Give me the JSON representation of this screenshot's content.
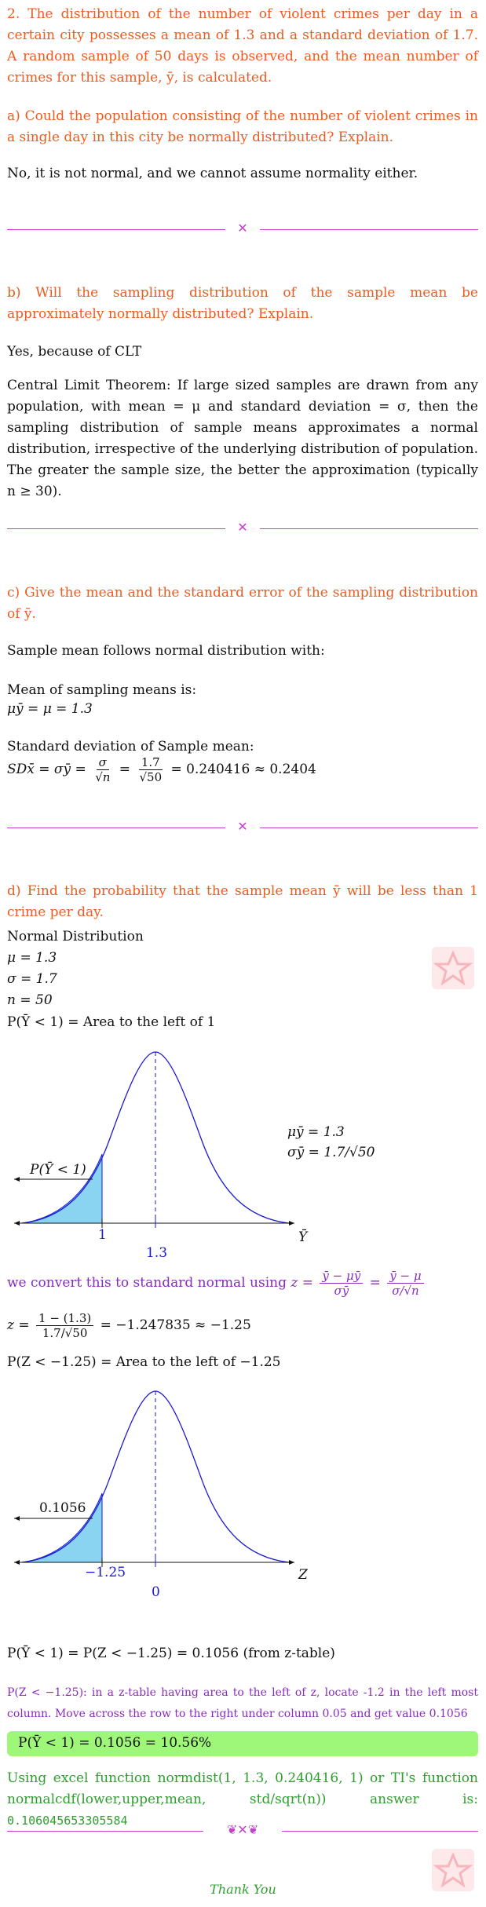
{
  "question": {
    "number": "2.",
    "text": "The distribution of the number of violent crimes per day in a certain city possesses a mean of 1.3 and a standard deviation of 1.7. A random sample of 50 days is observed, and the mean number of crimes for this sample, ȳ, is calculated."
  },
  "part_a": {
    "question": "a) Could the population consisting of the number of violent crimes in a single day in this city be normally distributed? Explain.",
    "answer": "No, it is not normal, and we cannot assume normality either."
  },
  "part_b": {
    "question": "b) Will the sampling distribution of the sample mean be approximately normally distributed? Explain.",
    "answer": "Yes, because of CLT",
    "clt": "Central Limit Theorem: If large sized samples are drawn from any population, with mean = μ and standard deviation = σ, then the sampling distribution of sample means approximates a normal distribution, irrespective of the underlying distribution of population. The greater the sample size, the better the approximation (typically n ≥ 30)."
  },
  "part_c": {
    "question": "c) Give the mean and the standard error of the sampling distribution of ȳ.",
    "line1": "Sample mean follows normal distribution with:",
    "mean_label": "Mean of sampling means is:",
    "mean_formula": "μȳ = μ = 1.3",
    "sd_label": "Standard deviation of Sample mean:",
    "sd_lhs": "SDx̄ = σȳ =",
    "sd_num1": "σ",
    "sd_den1": "√n",
    "sd_num2": "1.7",
    "sd_den2": "√50",
    "sd_result": "= 0.240416 ≈ 0.2404"
  },
  "part_d": {
    "question": "d) Find the probability that the sample mean ȳ will be less than 1 crime per day.",
    "dist": "Normal Distribution",
    "mu": "μ = 1.3",
    "sigma": "σ = 1.7",
    "n": "n = 50",
    "prob_area": "P(Ȳ < 1) = Area to the left of 1",
    "graph1": {
      "left_label": "P(Ȳ < 1)",
      "x_cut": "1",
      "x_mean": "1.3",
      "axis": "Ȳ",
      "mu_label": "μȳ = 1.3",
      "sigma_label": "σȳ = 1.7/√50"
    },
    "convert_text": "we convert this to standard normal using",
    "convert_z": "z =",
    "convert_num1": "ȳ − μȳ",
    "convert_den1": "σȳ",
    "convert_num2": "ȳ − μ",
    "convert_den2": "σ/√n",
    "z_lhs": "z =",
    "z_num": "1 − (1.3)",
    "z_den": "1.7/√50",
    "z_result": "= −1.247835 ≈ −1.25",
    "z_area": "P(Z < −1.25) = Area to the left of −1.25",
    "graph2": {
      "left_label": "0.1056",
      "x_cut": "−1.25",
      "x_mean": "0",
      "axis": "Z"
    },
    "result_line": "P(Ȳ < 1) = P(Z < −1.25) = 0.1056 (from z-table)",
    "ztable_note": "P(Z < −1.25): in a z-table having area to the left of z, locate -1.2 in the left most column. Move across the row to the right under column 0.05 and get value 0.1056",
    "boxed_answer": "P(Ȳ < 1) = 0.1056 = 10.56%",
    "excel_note": "Using excel function normdist(1, 1.3, 0.240416, 1) or TI's function normalcdf(lower,upper,mean, std/sqrt(n)) answer is:",
    "excel_value": "0.106045653305584"
  },
  "thank_you": "Thank You",
  "colors": {
    "orange": "#f05a1e",
    "purple": "#8a2bbf",
    "green": "#2f9e2f",
    "curve": "#1a1ad6",
    "shade": "#8ad4f2",
    "box": "#9ff77a"
  }
}
